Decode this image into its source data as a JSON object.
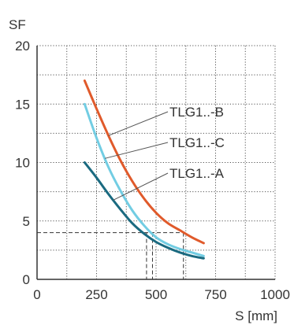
{
  "chart_data": {
    "type": "line",
    "xlabel": "S [mm]",
    "ylabel": "SF",
    "xlim": [
      0,
      1000
    ],
    "ylim": [
      0,
      20
    ],
    "x_ticks": [
      0,
      250,
      500,
      750,
      1000
    ],
    "y_ticks": [
      0,
      5,
      10,
      15,
      20
    ],
    "x_tick_labels": [
      "0",
      "250",
      "500",
      "750",
      "1000"
    ],
    "y_tick_labels": [
      "0",
      "5",
      "10",
      "15",
      "20"
    ],
    "grid": "dotted",
    "legend": "callout labels",
    "series": [
      {
        "name": "TLG1..-B",
        "color": "#e05a2b",
        "x": [
          200,
          250,
          300,
          350,
          400,
          450,
          500,
          550,
          600,
          650,
          700
        ],
        "y": [
          17.0,
          14.6,
          12.3,
          10.2,
          8.4,
          6.9,
          5.7,
          4.8,
          4.2,
          3.6,
          3.1
        ]
      },
      {
        "name": "TLG1..-C",
        "color": "#72cde3",
        "x": [
          200,
          250,
          300,
          350,
          400,
          450,
          500,
          550,
          600,
          650,
          700
        ],
        "y": [
          15.0,
          12.1,
          9.6,
          7.6,
          5.9,
          4.6,
          3.6,
          3.0,
          2.6,
          2.3,
          2.0
        ]
      },
      {
        "name": "TLG1..-A",
        "color": "#1a6a80",
        "x": [
          200,
          250,
          300,
          350,
          400,
          450,
          500,
          550,
          600,
          650,
          700
        ],
        "y": [
          10.0,
          8.7,
          7.3,
          6.0,
          4.8,
          3.9,
          3.2,
          2.7,
          2.3,
          2.0,
          1.8
        ]
      }
    ],
    "reference": {
      "y": 4,
      "x": [
        460,
        485,
        615
      ]
    }
  }
}
